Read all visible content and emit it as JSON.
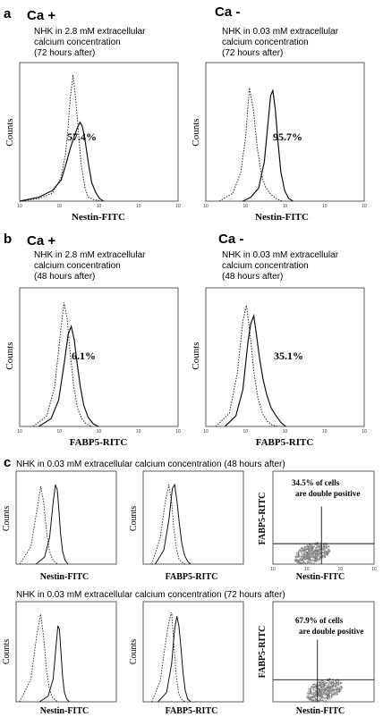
{
  "panels": {
    "a": {
      "letter": "a",
      "left": {
        "condition": "Ca +",
        "desc": [
          "NHK in 2.8 mM extracellular",
          "calcium concentration",
          "(72 hours after)"
        ]
      },
      "right": {
        "condition": "Ca -",
        "desc": [
          "NHK in 0.03 mM extracellular",
          "calcium concentration",
          "(72 hours after)"
        ]
      }
    },
    "b": {
      "letter": "b",
      "left": {
        "condition": "Ca +",
        "desc": [
          "NHK in 2.8 mM extracellular",
          "calcium concentration",
          "(48 hours after)"
        ]
      },
      "right": {
        "condition": "Ca -",
        "desc": [
          "NHK in 0.03 mM extracellular",
          "calcium concentration",
          "(48 hours after)"
        ]
      }
    },
    "c": {
      "letter": "c",
      "row1_title": "NHK in 0.03 mM extracellular calcium concentration (48 hours after)",
      "row2_title": "NHK in 0.03 mM extracellular calcium concentration (72 hours after)"
    }
  },
  "chart_data": [
    {
      "id": "a-left",
      "type": "histogram",
      "x_scale": "log",
      "xlabel": "Nestin-FITC",
      "ylabel": "Counts",
      "annotation": "57.4%",
      "x_ticks": [
        "10",
        "10",
        "10",
        "10",
        "10"
      ],
      "series": [
        {
          "style": "dotted",
          "x": [
            0.3,
            0.8,
            1.6,
            2.5,
            3.1,
            3.5,
            4.0,
            4.6,
            5.2,
            6.0,
            7.0,
            8.5,
            10,
            14,
            20
          ],
          "y": [
            0,
            2,
            6,
            18,
            35,
            52,
            78,
            96,
            80,
            55,
            28,
            10,
            3,
            1,
            0
          ]
        },
        {
          "style": "solid",
          "x": [
            0.3,
            0.8,
            1.6,
            2.5,
            3.2,
            4.0,
            5.0,
            5.8,
            6.6,
            7.4,
            8.4,
            10,
            12,
            15,
            18,
            22
          ],
          "y": [
            0,
            3,
            8,
            16,
            28,
            40,
            50,
            56,
            60,
            57,
            48,
            30,
            14,
            6,
            2,
            0
          ]
        }
      ]
    },
    {
      "id": "a-right",
      "type": "histogram",
      "x_scale": "log",
      "xlabel": "Nestin-FITC",
      "ylabel": "Counts",
      "annotation": "95.7%",
      "x_ticks": [
        "10",
        "10",
        "10",
        "10",
        "10"
      ],
      "series": [
        {
          "style": "dotted",
          "x": [
            0.6,
            1.2,
            1.8,
            2.3,
            2.8,
            3.4,
            4.2,
            5.2,
            6.5,
            8.5,
            11,
            15
          ],
          "y": [
            0,
            6,
            22,
            48,
            86,
            70,
            40,
            20,
            10,
            5,
            2,
            0
          ]
        },
        {
          "style": "solid",
          "x": [
            2.0,
            3.0,
            4.5,
            6.0,
            7.2,
            8.3,
            9.3,
            10.5,
            12,
            14,
            17,
            21,
            26
          ],
          "y": [
            0,
            3,
            10,
            30,
            58,
            80,
            84,
            70,
            46,
            22,
            8,
            2,
            0
          ]
        }
      ]
    },
    {
      "id": "b-left",
      "type": "histogram",
      "x_scale": "log",
      "xlabel": "FABP5-RITC",
      "ylabel": "Counts",
      "annotation": "6.1%",
      "x_ticks": [
        "10",
        "10",
        "10",
        "10",
        "10"
      ],
      "series": [
        {
          "style": "dotted",
          "x": [
            0.6,
            1.2,
            1.8,
            2.4,
            2.9,
            3.4,
            4.0,
            4.8,
            5.8,
            7.2,
            9,
            12
          ],
          "y": [
            0,
            8,
            30,
            70,
            94,
            82,
            55,
            30,
            14,
            6,
            2,
            0
          ]
        },
        {
          "style": "solid",
          "x": [
            0.8,
            1.5,
            2.2,
            3.0,
            3.6,
            4.2,
            4.9,
            5.7,
            6.7,
            8,
            10,
            13,
            17
          ],
          "y": [
            0,
            6,
            20,
            50,
            70,
            76,
            66,
            48,
            30,
            16,
            7,
            2,
            0
          ]
        }
      ]
    },
    {
      "id": "b-right",
      "type": "histogram",
      "x_scale": "log",
      "xlabel": "FABP5-RITC",
      "ylabel": "Counts",
      "annotation": "35.1%",
      "x_ticks": [
        "10",
        "10",
        "10",
        "10",
        "10"
      ],
      "series": [
        {
          "style": "dotted",
          "x": [
            0.5,
            1.0,
            1.5,
            2.0,
            2.4,
            2.9,
            3.5,
            4.3,
            5.4,
            7,
            9,
            12
          ],
          "y": [
            0,
            10,
            40,
            80,
            92,
            70,
            42,
            22,
            10,
            4,
            1,
            0
          ]
        },
        {
          "style": "solid",
          "x": [
            0.8,
            1.4,
            2.0,
            2.6,
            3.0,
            3.5,
            4.0,
            4.7,
            5.6,
            6.8,
            8.5,
            11,
            14,
            18
          ],
          "y": [
            0,
            8,
            28,
            64,
            78,
            84,
            70,
            52,
            36,
            24,
            14,
            8,
            3,
            0
          ]
        }
      ]
    },
    {
      "id": "c1-nestin",
      "type": "histogram",
      "x_scale": "log",
      "xlabel": "Nestin-FITC",
      "ylabel": "Counts",
      "series": [
        {
          "style": "dotted",
          "x": [
            0.4,
            1.0,
            1.6,
            2.2,
            2.8,
            3.5,
            4.4,
            5.6,
            7,
            9
          ],
          "y": [
            0,
            20,
            60,
            88,
            70,
            38,
            16,
            6,
            2,
            0
          ]
        },
        {
          "style": "solid",
          "x": [
            1.5,
            3,
            4.5,
            6.0,
            7.2,
            8.4,
            9.6,
            11,
            13,
            16,
            20
          ],
          "y": [
            0,
            8,
            30,
            70,
            90,
            84,
            60,
            34,
            14,
            4,
            0
          ]
        }
      ]
    },
    {
      "id": "c1-fabp5",
      "type": "histogram",
      "x_scale": "log",
      "xlabel": "FABP5-RITC",
      "ylabel": "Counts",
      "series": [
        {
          "style": "dotted",
          "x": [
            0.6,
            1.2,
            1.8,
            2.4,
            3.0,
            3.6,
            4.4,
            5.4,
            7,
            9
          ],
          "y": [
            0,
            30,
            70,
            90,
            70,
            40,
            18,
            6,
            2,
            0
          ]
        },
        {
          "style": "solid",
          "x": [
            0.8,
            1.6,
            2.4,
            3.2,
            3.8,
            4.6,
            5.6,
            6.8,
            8.5,
            11,
            14
          ],
          "y": [
            0,
            16,
            50,
            86,
            90,
            72,
            46,
            24,
            10,
            3,
            0
          ]
        }
      ]
    },
    {
      "id": "c1-dot",
      "type": "scatter",
      "xlabel": "Nestin-FITC",
      "ylabel": "FABP5-RITC",
      "annotation": [
        "34.5% of  cells",
        "are double positive"
      ],
      "x_ticks": [
        "10",
        "10",
        "10",
        "10"
      ],
      "quadrant_split": {
        "x": 0.48,
        "y": 0.78
      },
      "cluster_center": [
        0.38,
        0.88
      ]
    },
    {
      "id": "c2-nestin",
      "type": "histogram",
      "x_scale": "log",
      "xlabel": "Nestin-FITC",
      "ylabel": "Counts",
      "series": [
        {
          "style": "dotted",
          "x": [
            0.4,
            1.0,
            1.6,
            2.2,
            2.8,
            3.5,
            4.4,
            5.6,
            7,
            9
          ],
          "y": [
            0,
            24,
            70,
            92,
            68,
            34,
            14,
            5,
            2,
            0
          ]
        },
        {
          "style": "solid",
          "x": [
            2,
            4,
            6,
            7.5,
            8.8,
            10,
            11.5,
            13,
            15,
            18,
            22
          ],
          "y": [
            0,
            6,
            24,
            56,
            80,
            76,
            50,
            26,
            10,
            3,
            0
          ]
        }
      ]
    },
    {
      "id": "c2-fabp5",
      "type": "histogram",
      "x_scale": "log",
      "xlabel": "FABP5-RITC",
      "ylabel": "Counts",
      "series": [
        {
          "style": "dotted",
          "x": [
            0.6,
            1.2,
            1.8,
            2.4,
            3.0,
            3.6,
            4.4,
            5.4,
            7,
            9
          ],
          "y": [
            0,
            22,
            60,
            84,
            94,
            60,
            26,
            8,
            2,
            0
          ]
        },
        {
          "style": "solid",
          "x": [
            1,
            2,
            3,
            3.8,
            4.6,
            5.4,
            6.4,
            7.6,
            9,
            11,
            14
          ],
          "y": [
            0,
            10,
            40,
            76,
            90,
            80,
            56,
            30,
            12,
            3,
            0
          ]
        }
      ]
    },
    {
      "id": "c2-dot",
      "type": "scatter",
      "xlabel": "Nestin-FITC",
      "ylabel": "FABP5-RITC",
      "annotation": [
        "67.9% of  cells",
        "are double positive"
      ],
      "x_ticks": [
        "10",
        "10",
        "10",
        "10"
      ],
      "quadrant_split": {
        "x": 0.44,
        "y": 0.78
      },
      "cluster_center": [
        0.5,
        0.88
      ]
    }
  ]
}
